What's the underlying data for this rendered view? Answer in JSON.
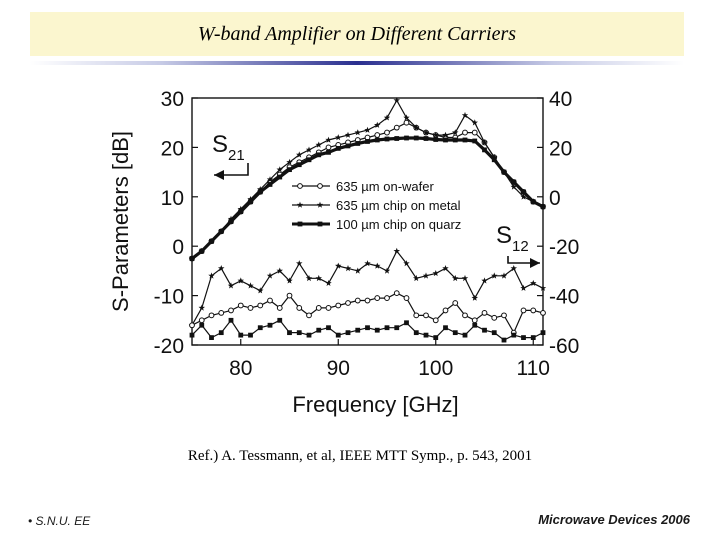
{
  "slide": {
    "title": "W-band Amplifier on Different Carriers",
    "reference": "Ref.) A. Tessmann, et al, IEEE MTT Symp., p. 543, 2001",
    "footer_left": "S.N.U. EE",
    "footer_right": "Microwave Devices 2006",
    "accent_color": "#2a2f8f",
    "title_bg_color": "#fbf6cf"
  },
  "chart_data": {
    "type": "line",
    "title": "",
    "xlabel": "Frequency [GHz]",
    "ylabel": "S-Parameters [dB]",
    "xlim": [
      75,
      111
    ],
    "x_ticks": [
      80,
      90,
      100,
      110
    ],
    "x_tick_labels": [
      "80",
      "90",
      "100",
      "110"
    ],
    "ylim_left": [
      -20,
      30
    ],
    "y_ticks_left": [
      -20,
      -10,
      0,
      10,
      20,
      30
    ],
    "y_tick_labels_left": [
      "-20",
      "-10",
      "0",
      "10",
      "20",
      "30"
    ],
    "ylim_right": [
      -60,
      40
    ],
    "y_ticks_right": [
      -60,
      -40,
      -20,
      0,
      20,
      40
    ],
    "y_tick_labels_right": [
      "-60",
      "-40",
      "-20",
      "0",
      "20",
      "40"
    ],
    "legend_position": "center-right",
    "annotations": [
      {
        "text": "S21",
        "base": "S",
        "sub": "21",
        "axis": "left",
        "arrow": "left"
      },
      {
        "text": "S12",
        "base": "S",
        "sub": "12",
        "axis": "right",
        "arrow": "right"
      }
    ],
    "x": [
      75,
      76,
      77,
      78,
      79,
      80,
      81,
      82,
      83,
      84,
      85,
      86,
      87,
      88,
      89,
      90,
      91,
      92,
      93,
      94,
      95,
      96,
      97,
      98,
      99,
      100,
      101,
      102,
      103,
      104,
      105,
      106,
      107,
      108,
      109,
      110,
      111
    ],
    "series": [
      {
        "name": "635 µm on-wafer",
        "marker": "circle",
        "group": "S21",
        "axis": "left",
        "values": [
          -2.5,
          -1,
          1,
          3,
          5,
          7,
          9,
          11,
          13,
          14.5,
          16,
          17,
          18,
          19,
          20,
          20.5,
          21,
          21.5,
          22,
          22.5,
          23,
          24,
          25,
          24,
          23,
          22.5,
          22,
          22,
          23,
          23,
          21,
          18,
          15,
          13,
          11,
          9,
          8
        ]
      },
      {
        "name": "635 µm chip on metal",
        "marker": "star",
        "group": "S21",
        "axis": "left",
        "values": [
          -2.5,
          -1,
          1,
          3,
          5.5,
          7.5,
          9.5,
          11.5,
          13.5,
          15.5,
          17,
          18.5,
          19.5,
          20.5,
          21.5,
          22,
          22.5,
          23,
          23.5,
          24.5,
          26,
          29.5,
          26,
          24,
          23,
          22.5,
          22.5,
          23,
          26.5,
          25,
          21,
          18,
          15,
          12,
          10,
          9,
          8
        ]
      },
      {
        "name": "100 µm chip on quarz",
        "marker": "square",
        "group": "S21",
        "axis": "left",
        "values": [
          -2.5,
          -1,
          1,
          3,
          5,
          7,
          9,
          11,
          12.5,
          14,
          15.5,
          16.5,
          17.5,
          18.5,
          19,
          19.8,
          20.3,
          20.8,
          21.2,
          21.5,
          21.7,
          21.8,
          21.9,
          21.9,
          21.8,
          21.6,
          21.5,
          21.5,
          21.5,
          21.3,
          19.5,
          17.5,
          15,
          13,
          11,
          9,
          8
        ]
      },
      {
        "name": "635 µm chip on metal",
        "marker": "star",
        "group": "S12",
        "axis": "right",
        "values": [
          -52,
          -45,
          -32,
          -29,
          -36,
          -34,
          -36,
          -38,
          -32,
          -30,
          -34,
          -27,
          -33,
          -33,
          -35,
          -28,
          -29,
          -30,
          -27,
          -28,
          -30,
          -22,
          -27,
          -33,
          -32,
          -31,
          -29,
          -33,
          -33,
          -41,
          -34,
          -32,
          -32,
          -29,
          -37,
          -35,
          -37
        ]
      },
      {
        "name": "635 µm on-wafer",
        "marker": "circle",
        "group": "S12",
        "axis": "right",
        "values": [
          -52,
          -50,
          -48,
          -47,
          -46,
          -44,
          -45,
          -44,
          -42,
          -45,
          -40,
          -45,
          -48,
          -45,
          -45,
          -44,
          -43,
          -42,
          -42,
          -41,
          -41,
          -39,
          -41,
          -48,
          -48,
          -50,
          -46,
          -43,
          -48,
          -50,
          -47,
          -49,
          -48,
          -55,
          -46,
          -46,
          -47
        ]
      },
      {
        "name": "100 µm chip on quarz",
        "marker": "square",
        "group": "S12",
        "axis": "right",
        "values": [
          -56,
          -52,
          -57,
          -55,
          -50,
          -56,
          -56,
          -53,
          -52,
          -50,
          -55,
          -55,
          -56,
          -54,
          -53,
          -56,
          -55,
          -54,
          -53,
          -54,
          -53,
          -53,
          -51,
          -55,
          -56,
          -57,
          -53,
          -55,
          -56,
          -52,
          -54,
          -55,
          -58,
          -56,
          -57,
          -57,
          -55
        ]
      }
    ]
  }
}
